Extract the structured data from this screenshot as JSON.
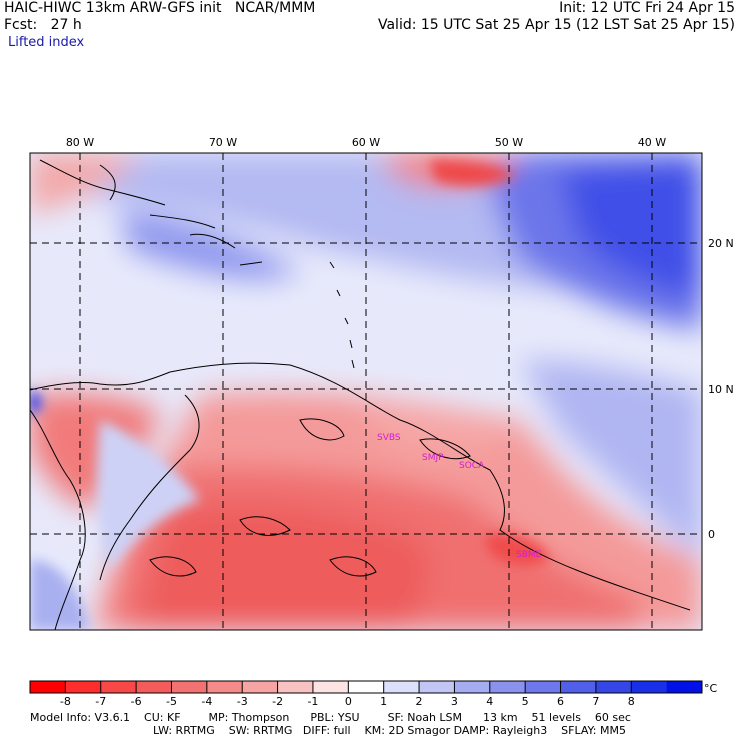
{
  "header": {
    "model_line": "HAIC-HIWC 13km ARW-GFS init   NCAR/MMM",
    "init_line": "Init: 12 UTC Fri 24 Apr 15",
    "fcst_line": "Fcst:   27 h",
    "valid_line": "Valid: 15 UTC Sat 25 Apr 15 (12 LST Sat 25 Apr 15)",
    "field_name": "Lifted index"
  },
  "map": {
    "lon_labels": [
      "80 W",
      "70 W",
      "60 W",
      "50 W",
      "40 W"
    ],
    "lat_labels": [
      "20 N",
      "10 N",
      "0"
    ],
    "stations": [
      "SVBS",
      "SMJP",
      "SOCA",
      "SBME"
    ],
    "colors": {
      "neg_strong": "#ff2020",
      "neg_mid": "#f06a6a",
      "neg_light": "#f6a0a0",
      "neutral": "#ffffff",
      "pos_light": "#a8b0f0",
      "pos_mid": "#6e78ea",
      "pos_strong": "#2038ef",
      "coast": "#000000",
      "station": "#d21fd2"
    }
  },
  "colorbar": {
    "labels": [
      "-8",
      "-7",
      "-6",
      "-5",
      "-4",
      "-3",
      "-2",
      "-1",
      "0",
      "1",
      "2",
      "3",
      "4",
      "5",
      "6",
      "7",
      "8"
    ],
    "unit": "°C",
    "colors": [
      "#ff0000",
      "#ff2e2e",
      "#f84848",
      "#f45c5c",
      "#f27272",
      "#f48a8a",
      "#f6a4a4",
      "#f9c2c2",
      "#fde4e4",
      "#ffffff",
      "#dde0fa",
      "#c2c6f5",
      "#a6acf1",
      "#8a92ed",
      "#6e78ea",
      "#525fe8",
      "#3646e6",
      "#1830e8",
      "#0010e6"
    ]
  },
  "footer": {
    "line1": "Model Info: V3.6.1    CU: KF        MP: Thompson      PBL: YSU        SF: Noah LSM      13 km    51 levels    60 sec",
    "line2": "LW: RRTMG    SW: RRTMG   DIFF: full    KM: 2D Smagor DAMP: Rayleigh3    SFLAY: MM5"
  }
}
